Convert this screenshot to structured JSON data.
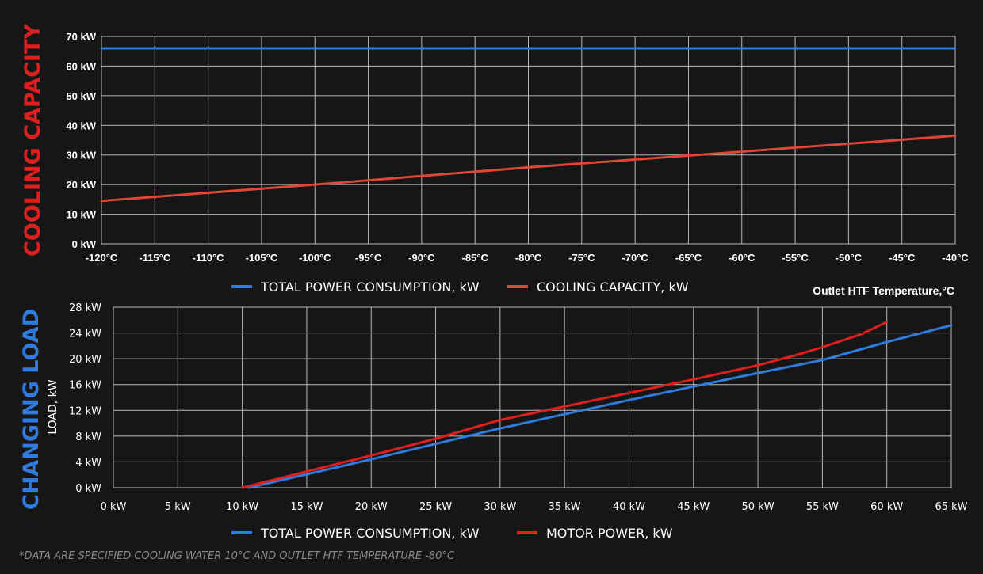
{
  "colors": {
    "blue": "#2f7be0",
    "red": "#e01e1e",
    "red_line": "#e04535",
    "grid": "#b9b9b9",
    "background": "#161616"
  },
  "chart_data": [
    {
      "id": "top",
      "type": "line",
      "side_title": "COOLING CAPACITY",
      "side_title_color": "#e01e1e",
      "x_note": "Outlet HTF Temperature,°C",
      "x": [
        -120,
        -115,
        -110,
        -105,
        -100,
        -95,
        -90,
        -85,
        -80,
        -75,
        -70,
        -65,
        -60,
        -55,
        -50,
        -45,
        -40
      ],
      "xticks": [
        "-120°C",
        "-115°C",
        "-110°C",
        "-105°C",
        "-100°C",
        "-95°C",
        "-90°C",
        "-85°C",
        "-80°C",
        "-75°C",
        "-70°C",
        "-65°C",
        "-60°C",
        "-55°C",
        "-50°C",
        "-45°C",
        "-40°C"
      ],
      "yticks": [
        "0 kW",
        "10 kW",
        "20 kW",
        "30 kW",
        "40 kW",
        "50 kW",
        "60 kW",
        "70 kW"
      ],
      "xlim": [
        -120,
        -40
      ],
      "ylim": [
        0,
        70
      ],
      "grid": true,
      "legend_position": "bottom-center",
      "series": [
        {
          "name": "TOTAL POWER CONSUMPTION, kW",
          "color": "#2f7be0",
          "points": [
            [
              -120,
              66
            ],
            [
              -40,
              66
            ]
          ]
        },
        {
          "name": "COOLING CAPACITY, kW",
          "color": "#e04535",
          "points": [
            [
              -120,
              14.5
            ],
            [
              -100,
              20
            ],
            [
              -80,
              25.8
            ],
            [
              -65,
              29.8
            ],
            [
              -40,
              36.5
            ]
          ]
        }
      ]
    },
    {
      "id": "bottom",
      "type": "line",
      "side_title": "CHANGING LOAD",
      "side_title_color": "#2f7be0",
      "ylabel": "LOAD, kW",
      "x": [
        0,
        5,
        10,
        15,
        20,
        25,
        30,
        35,
        40,
        45,
        50,
        55,
        60,
        65
      ],
      "xticks": [
        "0 kW",
        "5 kW",
        "10 kW",
        "15 kW",
        "20 kW",
        "25 kW",
        "30 kW",
        "35 kW",
        "40 kW",
        "45 kW",
        "50 kW",
        "55 kW",
        "60 kW",
        "65 kW"
      ],
      "yticks": [
        "0 kW",
        "4 kW",
        "8 kW",
        "12 kW",
        "16 kW",
        "20 kW",
        "24 kW",
        "28 kW"
      ],
      "xlim": [
        0,
        65
      ],
      "ylim": [
        0,
        28
      ],
      "grid": true,
      "legend_position": "bottom-center",
      "series": [
        {
          "name": "TOTAL POWER CONSUMPTION, kW",
          "color": "#2f7be0",
          "points": [
            [
              10.5,
              0
            ],
            [
              20,
              4.4
            ],
            [
              30,
              9.2
            ],
            [
              40,
              13.6
            ],
            [
              50,
              17.8
            ],
            [
              55,
              19.8
            ],
            [
              60,
              22.6
            ],
            [
              65,
              25.2
            ]
          ]
        },
        {
          "name": "MOTOR POWER, kW",
          "color": "#e01e1e",
          "points": [
            [
              10,
              0
            ],
            [
              15,
              2.5
            ],
            [
              20,
              5.0
            ],
            [
              25,
              7.6
            ],
            [
              30,
              10.5
            ],
            [
              35,
              12.6
            ],
            [
              40,
              14.7
            ],
            [
              45,
              16.8
            ],
            [
              50,
              19.0
            ],
            [
              53,
              20.6
            ],
            [
              55,
              21.8
            ],
            [
              58,
              23.8
            ],
            [
              60,
              25.7
            ]
          ]
        }
      ]
    }
  ],
  "footnote": "*DATA ARE SPECIFIED COOLING WATER 10°C AND OUTLET HTF TEMPERATURE -80°C"
}
